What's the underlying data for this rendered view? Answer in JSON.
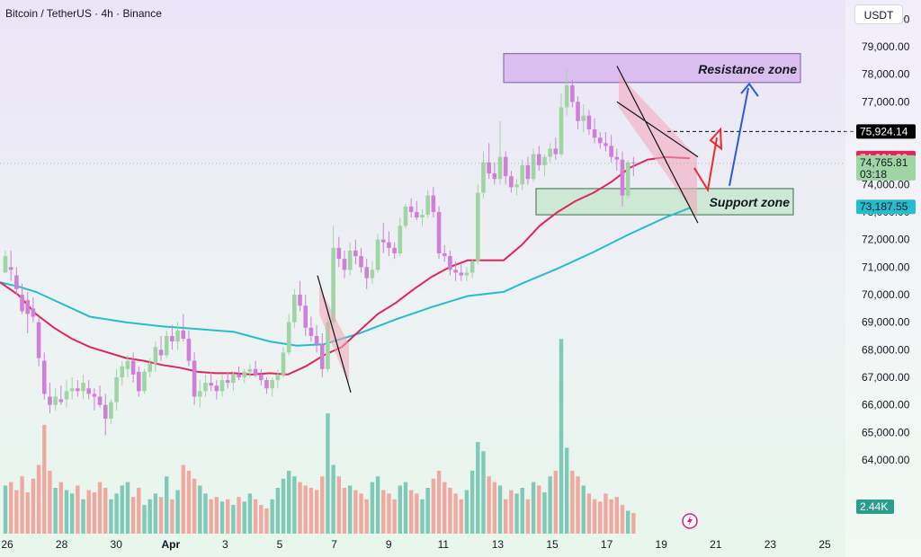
{
  "chart_title": "Bitcoin / TetherUS · 4h · Binance",
  "currency_label": "USDT",
  "colors": {
    "bull": "#9fd5a3",
    "bear": "#cf7fd8",
    "ema_fast": "#e0245e",
    "ema_slow": "#26bcd0",
    "vol_bull": "#7fc9b8",
    "vol_bear": "#f0a9a0",
    "resistance_fill": "#d9b9ee",
    "support_fill": "#c8e6d0",
    "red_arrow": "#ee2a2a",
    "blue_arrow": "#2a5bd6"
  },
  "chart_data": {
    "type": "candlestick",
    "y_axis": {
      "min": 62500,
      "max": 80500,
      "ticks": [
        "80,000.00",
        "79,000.00",
        "78,000.00",
        "77,000.00",
        "76,000.00",
        "75,000.00",
        "74,000.00",
        "73,000.00",
        "72,000.00",
        "71,000.00",
        "70,000.00",
        "69,000.00",
        "68,000.00",
        "67,000.00",
        "66,000.00",
        "65,000.00",
        "64,000.00"
      ],
      "tick_values": [
        80000,
        79000,
        78000,
        77000,
        76000,
        75000,
        74000,
        73000,
        72000,
        71000,
        70000,
        69000,
        68000,
        67000,
        66000,
        65000,
        64000
      ]
    },
    "x_axis": {
      "labels": [
        "26",
        "28",
        "30",
        "Apr",
        "3",
        "5",
        "7",
        "9",
        "11",
        "13",
        "15",
        "17",
        "19",
        "21",
        "23",
        "25"
      ]
    },
    "price_labels": [
      {
        "name": "dashed-level",
        "text": "75,924.14",
        "value": 75924.14,
        "bg": "#000000",
        "fg": "#ffffff"
      },
      {
        "name": "ema-fast",
        "text": "74,961.39",
        "value": 74961.39,
        "bg": "#e0245e",
        "fg": "#ffffff"
      },
      {
        "name": "last-price",
        "text": "74,765.81",
        "subtext": "03:18",
        "value": 74765.81,
        "bg": "#9fd5a3",
        "fg": "#131722"
      },
      {
        "name": "ema-slow",
        "text": "73,187.55",
        "value": 73187.55,
        "bg": "#26bcd0",
        "fg": "#131722"
      }
    ],
    "volume_label": "2.44K",
    "annotations": {
      "resistance": {
        "label": "Resistance zone",
        "low": 77700,
        "high": 78750
      },
      "support": {
        "label": "Support zone",
        "low": 72900,
        "high": 73850
      }
    },
    "ema_fast_points": [
      [
        0,
        70450
      ],
      [
        20,
        70000
      ],
      [
        40,
        69300
      ],
      [
        60,
        68800
      ],
      [
        80,
        68400
      ],
      [
        100,
        68100
      ],
      [
        120,
        67900
      ],
      [
        140,
        67700
      ],
      [
        160,
        67600
      ],
      [
        180,
        67450
      ],
      [
        200,
        67350
      ],
      [
        220,
        67200
      ],
      [
        240,
        67150
      ],
      [
        260,
        67150
      ],
      [
        280,
        67100
      ],
      [
        300,
        67150
      ],
      [
        320,
        67100
      ],
      [
        340,
        67400
      ],
      [
        360,
        67800
      ],
      [
        380,
        68100
      ],
      [
        400,
        68700
      ],
      [
        420,
        69300
      ],
      [
        440,
        69700
      ],
      [
        460,
        70200
      ],
      [
        480,
        70650
      ],
      [
        500,
        71000
      ],
      [
        520,
        71250
      ],
      [
        540,
        71250
      ],
      [
        560,
        71250
      ],
      [
        580,
        71800
      ],
      [
        600,
        72500
      ],
      [
        620,
        73000
      ],
      [
        640,
        73400
      ],
      [
        660,
        73700
      ],
      [
        680,
        74100
      ],
      [
        700,
        74600
      ],
      [
        720,
        74900
      ],
      [
        740,
        75000
      ],
      [
        767,
        74950
      ]
    ],
    "ema_slow_points": [
      [
        0,
        70450
      ],
      [
        20,
        70300
      ],
      [
        40,
        70100
      ],
      [
        60,
        69800
      ],
      [
        80,
        69500
      ],
      [
        100,
        69200
      ],
      [
        140,
        69000
      ],
      [
        180,
        68850
      ],
      [
        220,
        68750
      ],
      [
        260,
        68650
      ],
      [
        300,
        68300
      ],
      [
        330,
        68150
      ],
      [
        360,
        68200
      ],
      [
        400,
        68600
      ],
      [
        440,
        69100
      ],
      [
        480,
        69550
      ],
      [
        520,
        69950
      ],
      [
        560,
        70100
      ],
      [
        580,
        70400
      ],
      [
        620,
        70950
      ],
      [
        660,
        71550
      ],
      [
        700,
        72200
      ],
      [
        740,
        72800
      ],
      [
        767,
        73150
      ]
    ],
    "candles": [
      [
        70800,
        71600,
        70800,
        71400
      ],
      [
        71000,
        71600,
        70500,
        70900
      ],
      [
        70700,
        71000,
        70000,
        70200
      ],
      [
        70000,
        70400,
        69300,
        69400
      ],
      [
        69800,
        70100,
        68600,
        69300
      ],
      [
        69500,
        69900,
        69000,
        69200
      ],
      [
        69000,
        69200,
        67400,
        67700
      ],
      [
        67600,
        67900,
        66200,
        66400
      ],
      [
        66300,
        66800,
        65700,
        66000
      ],
      [
        66000,
        66600,
        65800,
        66300
      ],
      [
        66200,
        66700,
        66000,
        66100
      ],
      [
        66200,
        66900,
        65900,
        66500
      ],
      [
        66500,
        67000,
        66200,
        66600
      ],
      [
        66600,
        66900,
        66300,
        66500
      ],
      [
        66500,
        67100,
        66200,
        66800
      ],
      [
        66600,
        66900,
        66200,
        66400
      ],
      [
        66400,
        66600,
        65800,
        66300
      ],
      [
        66300,
        66700,
        65900,
        66000
      ],
      [
        66000,
        66400,
        64900,
        65500
      ],
      [
        65500,
        66200,
        65300,
        66100
      ],
      [
        66100,
        67300,
        65800,
        67000
      ],
      [
        67000,
        67600,
        66700,
        67400
      ],
      [
        67300,
        67800,
        67000,
        67600
      ],
      [
        67600,
        67900,
        66800,
        67100
      ],
      [
        67200,
        67400,
        66300,
        66500
      ],
      [
        66500,
        67300,
        66400,
        67200
      ],
      [
        67200,
        67700,
        67000,
        67500
      ],
      [
        67500,
        68300,
        67200,
        68100
      ],
      [
        68000,
        68500,
        67600,
        67800
      ],
      [
        67800,
        68700,
        67700,
        68500
      ],
      [
        68500,
        68900,
        68000,
        68300
      ],
      [
        68300,
        69000,
        68000,
        68700
      ],
      [
        68700,
        69300,
        68300,
        68400
      ],
      [
        68400,
        68700,
        67400,
        67600
      ],
      [
        67600,
        67900,
        66000,
        66300
      ],
      [
        66300,
        66900,
        65900,
        66500
      ],
      [
        66500,
        67100,
        66300,
        66800
      ],
      [
        66800,
        67200,
        66500,
        66700
      ],
      [
        66700,
        66900,
        66200,
        66500
      ],
      [
        66500,
        67100,
        66300,
        66900
      ],
      [
        66900,
        67200,
        66600,
        66800
      ],
      [
        66800,
        67200,
        66500,
        67100
      ],
      [
        67100,
        67400,
        66900,
        67000
      ],
      [
        67000,
        67300,
        66800,
        67200
      ],
      [
        67200,
        67500,
        67000,
        67300
      ],
      [
        67300,
        67600,
        67000,
        67100
      ],
      [
        67100,
        67300,
        66700,
        66900
      ],
      [
        66900,
        67000,
        66400,
        66600
      ],
      [
        66600,
        67000,
        66300,
        66900
      ],
      [
        66900,
        67300,
        66600,
        67100
      ],
      [
        67100,
        68100,
        67000,
        67900
      ],
      [
        67900,
        69300,
        67800,
        69000
      ],
      [
        69000,
        70200,
        68800,
        70000
      ],
      [
        70000,
        70500,
        69400,
        69600
      ],
      [
        69600,
        70000,
        68500,
        68800
      ],
      [
        68800,
        69200,
        68300,
        68500
      ],
      [
        68500,
        68900,
        67900,
        68200
      ],
      [
        68200,
        68600,
        67000,
        67300
      ],
      [
        67300,
        69400,
        67200,
        69000
      ],
      [
        69000,
        72500,
        68900,
        71700
      ],
      [
        71700,
        72100,
        71000,
        71300
      ],
      [
        71300,
        71600,
        70600,
        70900
      ],
      [
        70900,
        71900,
        70700,
        71600
      ],
      [
        71600,
        72000,
        71100,
        71400
      ],
      [
        71400,
        71700,
        70800,
        71000
      ],
      [
        71000,
        71300,
        70200,
        70600
      ],
      [
        70600,
        71200,
        70400,
        70900
      ],
      [
        70900,
        72200,
        70800,
        72000
      ],
      [
        72000,
        72600,
        71500,
        71900
      ],
      [
        71900,
        72300,
        71400,
        71700
      ],
      [
        71700,
        71900,
        71300,
        71500
      ],
      [
        71500,
        72800,
        71400,
        72500
      ],
      [
        72500,
        73300,
        72400,
        73200
      ],
      [
        73200,
        73500,
        72800,
        73000
      ],
      [
        73000,
        73400,
        72700,
        72800
      ],
      [
        72800,
        73100,
        72500,
        72900
      ],
      [
        72900,
        73800,
        72800,
        73600
      ],
      [
        73600,
        73900,
        72800,
        73000
      ],
      [
        73000,
        73200,
        71300,
        71500
      ],
      [
        71500,
        71800,
        71200,
        71400
      ],
      [
        71400,
        71600,
        70700,
        70900
      ],
      [
        70900,
        71200,
        70500,
        70800
      ],
      [
        70800,
        71100,
        70500,
        70700
      ],
      [
        70700,
        71000,
        70500,
        70800
      ],
      [
        70800,
        71300,
        70600,
        71200
      ],
      [
        71200,
        74000,
        71100,
        73700
      ],
      [
        73700,
        75200,
        73500,
        74800
      ],
      [
        74800,
        75500,
        74200,
        74400
      ],
      [
        74400,
        74800,
        74000,
        74200
      ],
      [
        74200,
        76300,
        74000,
        75000
      ],
      [
        75000,
        75200,
        74000,
        74300
      ],
      [
        74300,
        74500,
        73700,
        73900
      ],
      [
        73900,
        74200,
        73600,
        74000
      ],
      [
        74000,
        74900,
        73800,
        74700
      ],
      [
        74700,
        75000,
        74000,
        74200
      ],
      [
        74200,
        75300,
        74100,
        75100
      ],
      [
        75100,
        75400,
        74500,
        74700
      ],
      [
        74700,
        75100,
        74300,
        75000
      ],
      [
        75000,
        75500,
        74800,
        75300
      ],
      [
        75300,
        75700,
        74900,
        75100
      ],
      [
        75100,
        77300,
        75000,
        76800
      ],
      [
        76800,
        78200,
        76500,
        77600
      ],
      [
        77600,
        77800,
        76800,
        77000
      ],
      [
        77000,
        77200,
        76000,
        76300
      ],
      [
        76300,
        76900,
        75900,
        76500
      ],
      [
        76500,
        76700,
        75800,
        76000
      ],
      [
        76000,
        76400,
        75500,
        75700
      ],
      [
        75700,
        75900,
        75300,
        75500
      ],
      [
        75500,
        75900,
        75200,
        75400
      ],
      [
        75400,
        75800,
        74800,
        75000
      ],
      [
        75000,
        75300,
        74500,
        74900
      ],
      [
        74900,
        75200,
        73200,
        73600
      ],
      [
        73600,
        74900,
        73500,
        74800
      ],
      [
        74800,
        75000,
        74300,
        74770
      ]
    ],
    "volumes": [
      0.42,
      0.45,
      0.38,
      0.5,
      0.36,
      0.48,
      0.6,
      0.95,
      0.55,
      0.4,
      0.45,
      0.38,
      0.35,
      0.42,
      0.3,
      0.38,
      0.36,
      0.45,
      0.4,
      0.3,
      0.35,
      0.42,
      0.45,
      0.32,
      0.4,
      0.25,
      0.3,
      0.35,
      0.32,
      0.5,
      0.3,
      0.38,
      0.6,
      0.55,
      0.48,
      0.42,
      0.35,
      0.3,
      0.32,
      0.28,
      0.3,
      0.25,
      0.32,
      0.28,
      0.35,
      0.3,
      0.25,
      0.22,
      0.3,
      0.4,
      0.48,
      0.55,
      0.5,
      0.45,
      0.42,
      0.4,
      0.38,
      0.5,
      1.05,
      0.6,
      0.5,
      0.4,
      0.42,
      0.38,
      0.35,
      0.3,
      0.45,
      0.5,
      0.38,
      0.35,
      0.3,
      0.42,
      0.45,
      0.38,
      0.35,
      0.3,
      0.4,
      0.48,
      0.55,
      0.45,
      0.4,
      0.35,
      0.3,
      0.38,
      0.55,
      0.8,
      0.72,
      0.5,
      0.45,
      0.42,
      0.3,
      0.38,
      0.35,
      0.4,
      0.3,
      0.45,
      0.42,
      0.36,
      0.5,
      0.55,
      1.7,
      0.75,
      0.55,
      0.5,
      0.42,
      0.35,
      0.3,
      0.28,
      0.35,
      0.3,
      0.32,
      0.25,
      0.2,
      0.18
    ]
  }
}
